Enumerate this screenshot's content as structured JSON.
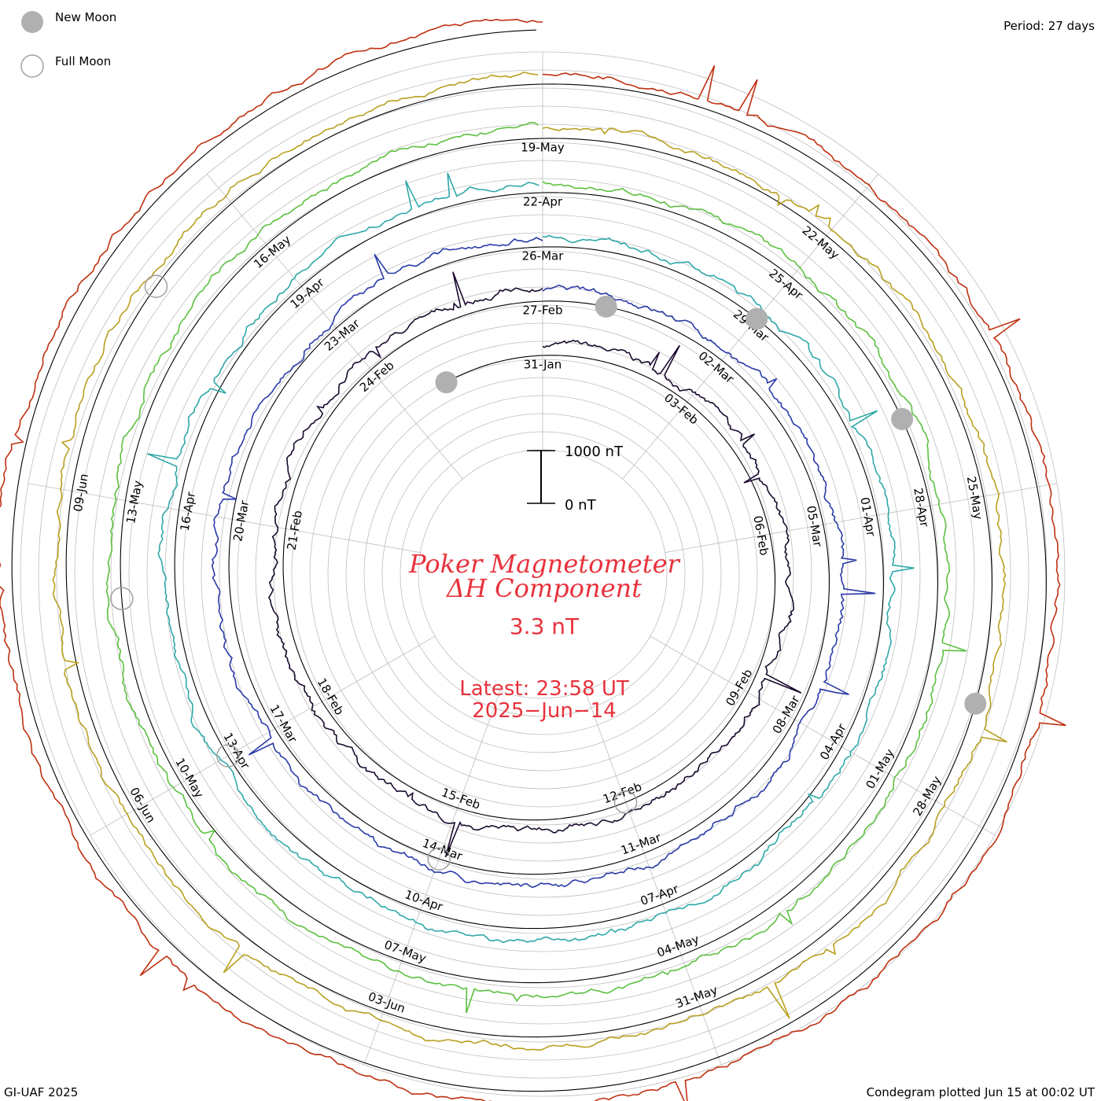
{
  "header": {
    "legend_new_moon": "New Moon",
    "legend_full_moon": "Full Moon",
    "period": "Period: 27 days"
  },
  "center": {
    "scale_top": "1000 nT",
    "scale_bottom": "0 nT",
    "title_line1": "Poker Magnetometer",
    "title_line2": "ΔH Component",
    "current_value": "3.3 nT",
    "latest_line1": "Latest: 23:58 UT",
    "latest_line2": "2025−Jun−14"
  },
  "footer": {
    "left": "GI-UAF 2025",
    "right": "Condegram plotted Jun 15 at 00:02 UT"
  },
  "colors": {
    "title": "#e8323c",
    "grid": "#bdbdbd",
    "ring": "#000000",
    "moon_new": "#b0b0b0",
    "moon_full": "#a0a0a0"
  },
  "chart_data": {
    "type": "line",
    "period_days": 27,
    "scale_nT": 1000,
    "series": [
      {
        "color": "#1a0a2e",
        "dates": [
          "31-Jan",
          "03-Feb",
          "06-Feb",
          "09-Feb",
          "12-Feb",
          "15-Feb",
          "18-Feb",
          "21-Feb",
          "24-Feb"
        ]
      },
      {
        "color": "#2a3aa8",
        "dates": [
          "27-Feb",
          "02-Mar",
          "05-Mar",
          "08-Mar",
          "11-Mar",
          "14-Mar",
          "17-Mar",
          "20-Mar",
          "23-Mar"
        ]
      },
      {
        "color": "#2fa8a8",
        "dates": [
          "26-Mar",
          "29-Mar",
          "01-Apr",
          "04-Apr",
          "07-Apr",
          "10-Apr",
          "13-Apr",
          "16-Apr",
          "19-Apr"
        ]
      },
      {
        "color": "#5cc040",
        "dates": [
          "22-Apr",
          "25-Apr",
          "28-Apr",
          "01-May",
          "04-May",
          "07-May",
          "10-May",
          "13-May",
          "16-May"
        ]
      },
      {
        "color": "#b8a020",
        "dates": [
          "19-May",
          "22-May",
          "25-May",
          "28-May",
          "31-May",
          "03-Jun",
          "06-Jun",
          "09-Jun"
        ]
      },
      {
        "color": "#c03010",
        "dates": []
      }
    ],
    "new_moons": [
      "29-Jan",
      "28-Feb",
      "29-Mar",
      "27-Apr",
      "27-May"
    ],
    "full_moons": [
      "12-Feb",
      "14-Mar",
      "13-Apr",
      "12-May",
      "11-Jun"
    ]
  }
}
